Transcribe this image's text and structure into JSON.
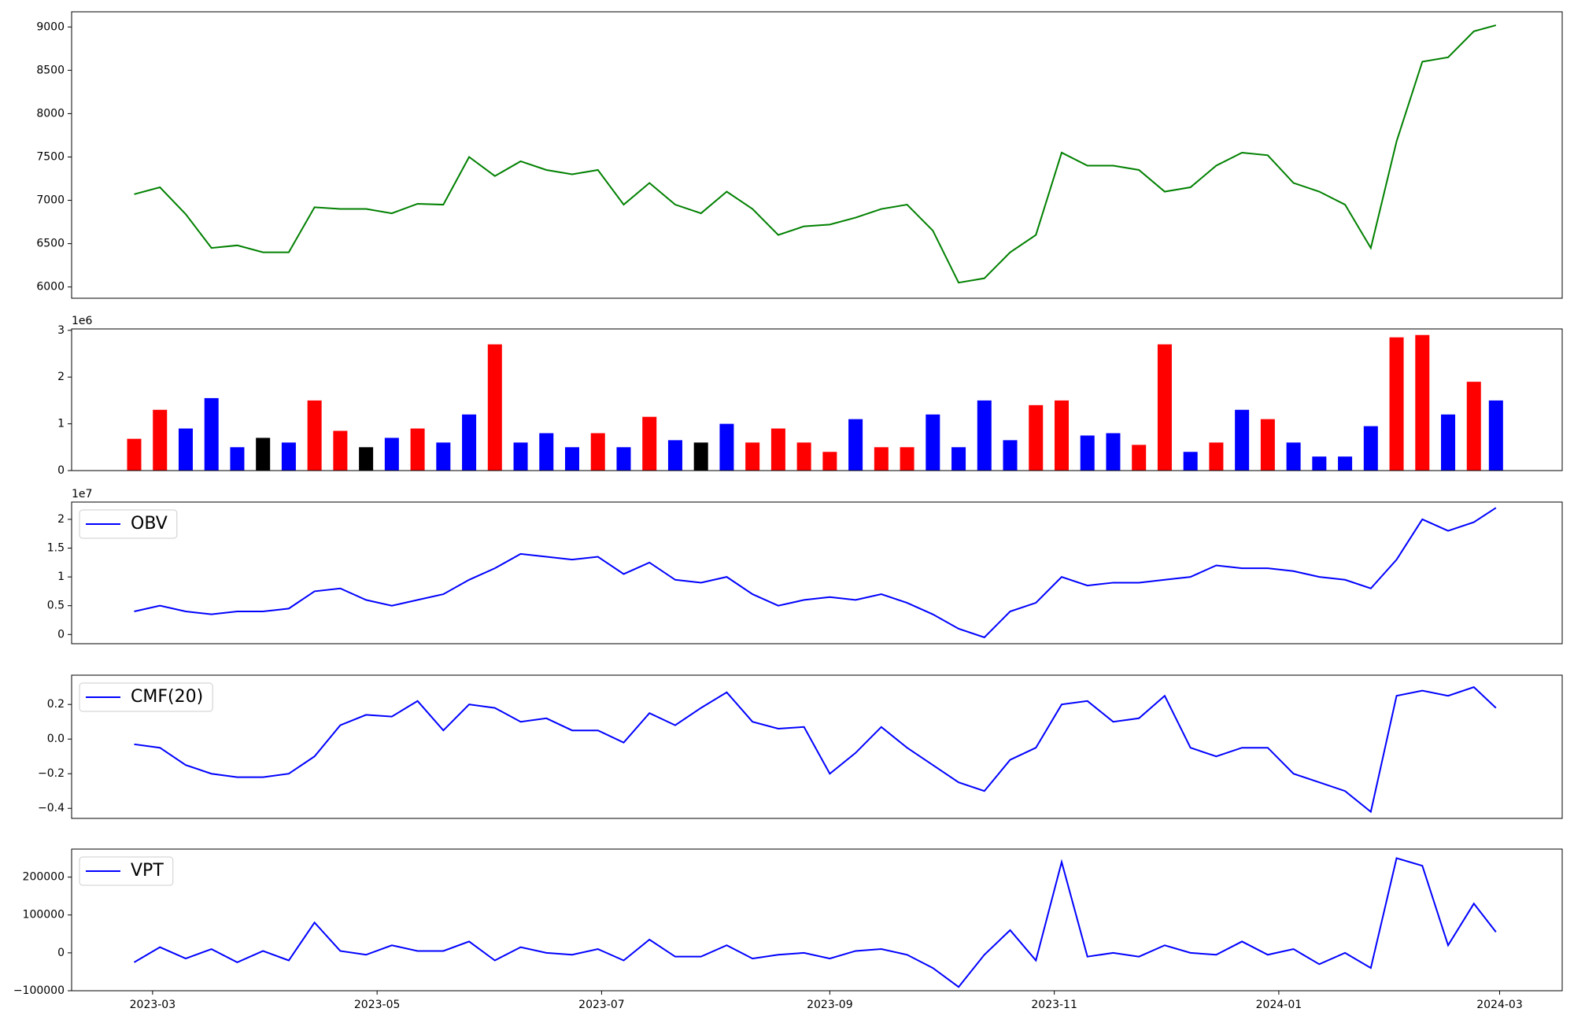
{
  "chart_data": [
    {
      "type": "line",
      "color": "#008000",
      "x": [
        "2023-02-24",
        "2023-03-03",
        "2023-03-10",
        "2023-03-17",
        "2023-03-24",
        "2023-03-31",
        "2023-04-07",
        "2023-04-14",
        "2023-04-21",
        "2023-04-28",
        "2023-05-05",
        "2023-05-12",
        "2023-05-19",
        "2023-05-26",
        "2023-06-02",
        "2023-06-09",
        "2023-06-16",
        "2023-06-23",
        "2023-06-30",
        "2023-07-07",
        "2023-07-14",
        "2023-07-21",
        "2023-07-28",
        "2023-08-04",
        "2023-08-11",
        "2023-08-18",
        "2023-08-25",
        "2023-09-01",
        "2023-09-08",
        "2023-09-15",
        "2023-09-22",
        "2023-09-29",
        "2023-10-06",
        "2023-10-13",
        "2023-10-20",
        "2023-10-27",
        "2023-11-03",
        "2023-11-10",
        "2023-11-17",
        "2023-11-24",
        "2023-12-01",
        "2023-12-08",
        "2023-12-15",
        "2023-12-22",
        "2023-12-29",
        "2024-01-05",
        "2024-01-12",
        "2024-01-19",
        "2024-01-26",
        "2024-02-02",
        "2024-02-09",
        "2024-02-16",
        "2024-02-23",
        "2024-02-29"
      ],
      "values": [
        7070,
        7150,
        6840,
        6450,
        6480,
        6400,
        6400,
        6920,
        6900,
        6900,
        6850,
        6960,
        6950,
        7500,
        7280,
        7450,
        7350,
        7300,
        7350,
        6950,
        7200,
        6950,
        6850,
        7100,
        6900,
        6600,
        6700,
        6720,
        6800,
        6900,
        6950,
        6650,
        6050,
        6100,
        6400,
        6600,
        7550,
        7400,
        7400,
        7350,
        7100,
        7150,
        7400,
        7550,
        7520,
        7200,
        7100,
        6950,
        6450,
        7680,
        8600,
        8650,
        8950,
        9020
      ],
      "xlim": [
        "2023-02-07",
        "2024-03-18"
      ],
      "ylim": [
        5870,
        9175
      ],
      "yticks": [
        6000,
        6500,
        7000,
        7500,
        8000,
        8500,
        9000
      ]
    },
    {
      "type": "bar",
      "y_offset_text": "1e6",
      "x": [
        "2023-02-24",
        "2023-03-03",
        "2023-03-10",
        "2023-03-17",
        "2023-03-24",
        "2023-03-31",
        "2023-04-07",
        "2023-04-14",
        "2023-04-21",
        "2023-04-28",
        "2023-05-05",
        "2023-05-12",
        "2023-05-19",
        "2023-05-26",
        "2023-06-02",
        "2023-06-09",
        "2023-06-16",
        "2023-06-23",
        "2023-06-30",
        "2023-07-07",
        "2023-07-14",
        "2023-07-21",
        "2023-07-28",
        "2023-08-04",
        "2023-08-11",
        "2023-08-18",
        "2023-08-25",
        "2023-09-01",
        "2023-09-08",
        "2023-09-15",
        "2023-09-22",
        "2023-09-29",
        "2023-10-06",
        "2023-10-13",
        "2023-10-20",
        "2023-10-27",
        "2023-11-03",
        "2023-11-10",
        "2023-11-17",
        "2023-11-24",
        "2023-12-01",
        "2023-12-08",
        "2023-12-15",
        "2023-12-22",
        "2023-12-29",
        "2024-01-05",
        "2024-01-12",
        "2024-01-19",
        "2024-01-26",
        "2024-02-02",
        "2024-02-09",
        "2024-02-16",
        "2024-02-23",
        "2024-02-29"
      ],
      "values": [
        0.68,
        1.3,
        0.9,
        1.55,
        0.5,
        0.7,
        0.6,
        1.5,
        0.85,
        0.5,
        0.7,
        0.9,
        0.6,
        1.2,
        2.7,
        0.6,
        0.8,
        0.5,
        0.8,
        0.5,
        1.15,
        0.65,
        0.6,
        1.0,
        0.6,
        0.9,
        0.6,
        0.4,
        1.1,
        0.5,
        0.5,
        1.2,
        0.5,
        1.5,
        0.65,
        1.4,
        1.5,
        0.75,
        0.8,
        0.55,
        2.7,
        0.4,
        0.6,
        1.3,
        1.1,
        0.6,
        0.3,
        0.3,
        0.95,
        2.85,
        2.9,
        1.2,
        1.9,
        1.5
      ],
      "colors": [
        "#ff0000",
        "#ff0000",
        "#0000ff",
        "#0000ff",
        "#0000ff",
        "#000000",
        "#0000ff",
        "#ff0000",
        "#ff0000",
        "#000000",
        "#0000ff",
        "#ff0000",
        "#0000ff",
        "#0000ff",
        "#ff0000",
        "#0000ff",
        "#0000ff",
        "#0000ff",
        "#ff0000",
        "#0000ff",
        "#ff0000",
        "#0000ff",
        "#000000",
        "#0000ff",
        "#ff0000",
        "#ff0000",
        "#ff0000",
        "#ff0000",
        "#0000ff",
        "#ff0000",
        "#ff0000",
        "#0000ff",
        "#0000ff",
        "#0000ff",
        "#0000ff",
        "#ff0000",
        "#ff0000",
        "#0000ff",
        "#0000ff",
        "#ff0000",
        "#ff0000",
        "#0000ff",
        "#ff0000",
        "#0000ff",
        "#ff0000",
        "#0000ff",
        "#0000ff",
        "#0000ff",
        "#0000ff",
        "#ff0000",
        "#ff0000",
        "#0000ff",
        "#ff0000",
        "#0000ff"
      ],
      "xlim": [
        "2023-02-07",
        "2024-03-18"
      ],
      "ylim": [
        0,
        3.03
      ],
      "yticks": [
        0,
        1,
        2,
        3
      ]
    },
    {
      "type": "line",
      "y_offset_text": "1e7",
      "legend": "upper left",
      "x": [
        "2023-02-24",
        "2023-03-03",
        "2023-03-10",
        "2023-03-17",
        "2023-03-24",
        "2023-03-31",
        "2023-04-07",
        "2023-04-14",
        "2023-04-21",
        "2023-04-28",
        "2023-05-05",
        "2023-05-12",
        "2023-05-19",
        "2023-05-26",
        "2023-06-02",
        "2023-06-09",
        "2023-06-16",
        "2023-06-23",
        "2023-06-30",
        "2023-07-07",
        "2023-07-14",
        "2023-07-21",
        "2023-07-28",
        "2023-08-04",
        "2023-08-11",
        "2023-08-18",
        "2023-08-25",
        "2023-09-01",
        "2023-09-08",
        "2023-09-15",
        "2023-09-22",
        "2023-09-29",
        "2023-10-06",
        "2023-10-13",
        "2023-10-20",
        "2023-10-27",
        "2023-11-03",
        "2023-11-10",
        "2023-11-17",
        "2023-11-24",
        "2023-12-01",
        "2023-12-08",
        "2023-12-15",
        "2023-12-22",
        "2023-12-29",
        "2024-01-05",
        "2024-01-12",
        "2024-01-19",
        "2024-01-26",
        "2024-02-02",
        "2024-02-09",
        "2024-02-16",
        "2024-02-23",
        "2024-02-29"
      ],
      "series": [
        {
          "name": "OBV",
          "color": "#0000ff",
          "values": [
            0.4,
            0.5,
            0.4,
            0.35,
            0.4,
            0.4,
            0.45,
            0.75,
            0.8,
            0.6,
            0.5,
            0.6,
            0.7,
            0.95,
            1.15,
            1.4,
            1.35,
            1.3,
            1.35,
            1.05,
            1.25,
            0.95,
            0.9,
            1.0,
            0.7,
            0.5,
            0.6,
            0.65,
            0.6,
            0.7,
            0.55,
            0.35,
            0.1,
            -0.05,
            0.4,
            0.55,
            1.0,
            0.85,
            0.9,
            0.9,
            0.95,
            1.0,
            1.2,
            1.15,
            1.15,
            1.1,
            1.0,
            0.95,
            0.8,
            1.3,
            2.0,
            1.8,
            1.95,
            2.2
          ]
        }
      ],
      "xlim": [
        "2023-02-07",
        "2024-03-18"
      ],
      "ylim": [
        -0.16,
        2.3
      ],
      "yticks": [
        0.0,
        0.5,
        1.0,
        1.5,
        2.0
      ]
    },
    {
      "type": "line",
      "legend": "upper left",
      "x": [
        "2023-02-24",
        "2023-03-03",
        "2023-03-10",
        "2023-03-17",
        "2023-03-24",
        "2023-03-31",
        "2023-04-07",
        "2023-04-14",
        "2023-04-21",
        "2023-04-28",
        "2023-05-05",
        "2023-05-12",
        "2023-05-19",
        "2023-05-26",
        "2023-06-02",
        "2023-06-09",
        "2023-06-16",
        "2023-06-23",
        "2023-06-30",
        "2023-07-07",
        "2023-07-14",
        "2023-07-21",
        "2023-07-28",
        "2023-08-04",
        "2023-08-11",
        "2023-08-18",
        "2023-08-25",
        "2023-09-01",
        "2023-09-08",
        "2023-09-15",
        "2023-09-22",
        "2023-09-29",
        "2023-10-06",
        "2023-10-13",
        "2023-10-20",
        "2023-10-27",
        "2023-11-03",
        "2023-11-10",
        "2023-11-17",
        "2023-11-24",
        "2023-12-01",
        "2023-12-08",
        "2023-12-15",
        "2023-12-22",
        "2023-12-29",
        "2024-01-05",
        "2024-01-12",
        "2024-01-19",
        "2024-01-26",
        "2024-02-02",
        "2024-02-09",
        "2024-02-16",
        "2024-02-23",
        "2024-02-29"
      ],
      "series": [
        {
          "name": "CMF(20)",
          "color": "#0000ff",
          "values": [
            -0.03,
            -0.05,
            -0.15,
            -0.2,
            -0.22,
            -0.22,
            -0.2,
            -0.1,
            0.08,
            0.14,
            0.13,
            0.22,
            0.05,
            0.2,
            0.18,
            0.1,
            0.12,
            0.05,
            0.05,
            -0.02,
            0.15,
            0.08,
            0.18,
            0.27,
            0.1,
            0.06,
            0.07,
            -0.2,
            -0.08,
            0.07,
            -0.05,
            -0.15,
            -0.25,
            -0.3,
            -0.12,
            -0.05,
            0.2,
            0.22,
            0.1,
            0.12,
            0.25,
            -0.05,
            -0.1,
            -0.05,
            -0.05,
            -0.2,
            -0.25,
            -0.3,
            -0.42,
            0.25,
            0.28,
            0.25,
            0.3,
            0.18
          ]
        }
      ],
      "xlim": [
        "2023-02-07",
        "2024-03-18"
      ],
      "ylim": [
        -0.458,
        0.369
      ],
      "yticks": [
        {
          "value": -0.4,
          "label": "−0.4"
        },
        {
          "value": -0.2,
          "label": "−0.2"
        },
        {
          "value": 0,
          "label": "0.0"
        },
        0.2
      ]
    },
    {
      "type": "line",
      "legend": "upper left",
      "x": [
        "2023-02-24",
        "2023-03-03",
        "2023-03-10",
        "2023-03-17",
        "2023-03-24",
        "2023-03-31",
        "2023-04-07",
        "2023-04-14",
        "2023-04-21",
        "2023-04-28",
        "2023-05-05",
        "2023-05-12",
        "2023-05-19",
        "2023-05-26",
        "2023-06-02",
        "2023-06-09",
        "2023-06-16",
        "2023-06-23",
        "2023-06-30",
        "2023-07-07",
        "2023-07-14",
        "2023-07-21",
        "2023-07-28",
        "2023-08-04",
        "2023-08-11",
        "2023-08-18",
        "2023-08-25",
        "2023-09-01",
        "2023-09-08",
        "2023-09-15",
        "2023-09-22",
        "2023-09-29",
        "2023-10-06",
        "2023-10-13",
        "2023-10-20",
        "2023-10-27",
        "2023-11-03",
        "2023-11-10",
        "2023-11-17",
        "2023-11-24",
        "2023-12-01",
        "2023-12-08",
        "2023-12-15",
        "2023-12-22",
        "2023-12-29",
        "2024-01-05",
        "2024-01-12",
        "2024-01-19",
        "2024-01-26",
        "2024-02-02",
        "2024-02-09",
        "2024-02-16",
        "2024-02-23",
        "2024-02-29"
      ],
      "series": [
        {
          "name": "VPT",
          "color": "#0000ff",
          "values": [
            -25000,
            15000,
            -15000,
            10000,
            -25000,
            5000,
            -20000,
            80000,
            5000,
            -5000,
            20000,
            5000,
            5000,
            30000,
            -20000,
            15000,
            0,
            -5000,
            10000,
            -20000,
            35000,
            -10000,
            -10000,
            20000,
            -15000,
            -5000,
            0,
            -15000,
            5000,
            10000,
            -5000,
            -40000,
            -90000,
            -5000,
            60000,
            -20000,
            240000,
            -10000,
            0,
            -10000,
            20000,
            0,
            -5000,
            30000,
            -5000,
            10000,
            -30000,
            0,
            -40000,
            250000,
            230000,
            20000,
            130000,
            55000
          ]
        }
      ],
      "xlim": [
        "2023-02-07",
        "2024-03-18"
      ],
      "ylim": [
        -100000,
        274000
      ],
      "yticks": [
        {
          "value": -100000,
          "label": "−100000"
        },
        0,
        100000,
        200000
      ],
      "xticks": [
        {
          "value": "2023-03-01",
          "label": "2023-03"
        },
        {
          "value": "2023-05-01",
          "label": "2023-05"
        },
        {
          "value": "2023-07-01",
          "label": "2023-07"
        },
        {
          "value": "2023-09-01",
          "label": "2023-09"
        },
        {
          "value": "2023-11-01",
          "label": "2023-11"
        },
        {
          "value": "2024-01-01",
          "label": "2024-01"
        },
        {
          "value": "2024-03-01",
          "label": "2024-03"
        }
      ]
    }
  ]
}
